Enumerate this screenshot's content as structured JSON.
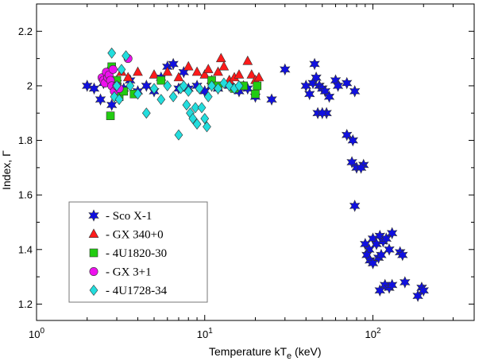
{
  "chart_data": {
    "type": "scatter",
    "title": "",
    "xlabel": "Temperature kT",
    "xlabel_sub": "e",
    "xlabel_unit": " (keV)",
    "ylabel": "Index, Γ",
    "xscale": "log",
    "xlim": [
      1,
      400
    ],
    "ylim": [
      1.14,
      2.3
    ],
    "x_ticks": [
      {
        "value": 1,
        "base": "10",
        "exp": "0"
      },
      {
        "value": 10,
        "base": "10",
        "exp": "1"
      },
      {
        "value": 100,
        "base": "10",
        "exp": "2"
      }
    ],
    "y_ticks": [
      1.2,
      1.4,
      1.6,
      1.8,
      2.0,
      2.2
    ],
    "y_tick_labels": [
      "1.2",
      "1.4",
      "1.6",
      "1.8",
      "2",
      "2.2"
    ],
    "legend_position": "bottom-left",
    "series": [
      {
        "name": "- Sco X-1",
        "marker": "star",
        "color": "#1010e0",
        "points": [
          [
            2.0,
            2.0
          ],
          [
            2.2,
            1.99
          ],
          [
            2.4,
            1.95
          ],
          [
            2.5,
            2.01
          ],
          [
            2.8,
            1.93
          ],
          [
            3.0,
            2.01
          ],
          [
            3.3,
            1.99
          ],
          [
            3.6,
            2.02
          ],
          [
            4.0,
            1.98
          ],
          [
            4.5,
            2.0
          ],
          [
            5.0,
            1.98
          ],
          [
            5.5,
            2.03
          ],
          [
            6.0,
            2.07
          ],
          [
            6.5,
            2.08
          ],
          [
            7.0,
            1.99
          ],
          [
            7.5,
            2.05
          ],
          [
            8.0,
            1.99
          ],
          [
            9.0,
            2.0
          ],
          [
            10.0,
            1.98
          ],
          [
            11.0,
            2.0
          ],
          [
            12.0,
            1.99
          ],
          [
            14.0,
            2.0
          ],
          [
            16.0,
            1.98
          ],
          [
            18.0,
            1.99
          ],
          [
            20.0,
            1.96
          ],
          [
            25.0,
            1.95
          ],
          [
            30.0,
            2.06
          ],
          [
            40.0,
            2.0
          ],
          [
            42.0,
            1.97
          ],
          [
            44.0,
            2.01
          ],
          [
            45.0,
            2.08
          ],
          [
            46.0,
            2.03
          ],
          [
            48.0,
            2.0
          ],
          [
            50.0,
            1.99
          ],
          [
            52.0,
            1.98
          ],
          [
            55.0,
            1.96
          ],
          [
            53.0,
            1.9
          ],
          [
            47.0,
            1.9
          ],
          [
            50.0,
            1.9
          ],
          [
            60.0,
            2.02
          ],
          [
            62.0,
            2.0
          ],
          [
            70.0,
            2.01
          ],
          [
            78.0,
            1.98
          ],
          [
            70.0,
            1.82
          ],
          [
            76.0,
            1.8
          ],
          [
            75.0,
            1.72
          ],
          [
            80.0,
            1.7
          ],
          [
            88.0,
            1.71
          ],
          [
            85.0,
            1.7
          ],
          [
            78.0,
            1.56
          ],
          [
            90.0,
            1.42
          ],
          [
            95.0,
            1.4
          ],
          [
            100.0,
            1.44
          ],
          [
            105.0,
            1.42
          ],
          [
            110.0,
            1.45
          ],
          [
            115.0,
            1.43
          ],
          [
            120.0,
            1.44
          ],
          [
            130.0,
            1.46
          ],
          [
            125.0,
            1.4
          ],
          [
            92.0,
            1.38
          ],
          [
            96.0,
            1.36
          ],
          [
            100.0,
            1.35
          ],
          [
            108.0,
            1.37
          ],
          [
            112.0,
            1.38
          ],
          [
            145.0,
            1.39
          ],
          [
            150.0,
            1.38
          ],
          [
            110.0,
            1.25
          ],
          [
            118.0,
            1.27
          ],
          [
            125.0,
            1.26
          ],
          [
            130.0,
            1.27
          ],
          [
            155.0,
            1.28
          ],
          [
            185.0,
            1.23
          ],
          [
            195.0,
            1.26
          ],
          [
            200.0,
            1.25
          ]
        ]
      },
      {
        "name": "- GX 340+0",
        "marker": "triangle",
        "color": "#ff1a1a",
        "points": [
          [
            2.7,
            2.06
          ],
          [
            3.0,
            2.02
          ],
          [
            3.2,
            2.05
          ],
          [
            3.5,
            2.03
          ],
          [
            4.0,
            2.05
          ],
          [
            5.0,
            2.04
          ],
          [
            6.0,
            2.05
          ],
          [
            7.0,
            2.03
          ],
          [
            8.0,
            2.07
          ],
          [
            9.0,
            2.05
          ],
          [
            10.0,
            2.04
          ],
          [
            10.5,
            2.06
          ],
          [
            11.0,
            2.02
          ],
          [
            12.0,
            2.05
          ],
          [
            12.5,
            2.1
          ],
          [
            13.0,
            2.07
          ],
          [
            14.0,
            2.02
          ],
          [
            15.0,
            2.03
          ],
          [
            16.0,
            2.04
          ],
          [
            17.0,
            2.0
          ],
          [
            18.0,
            2.09
          ],
          [
            19.0,
            2.04
          ],
          [
            20.0,
            2.02
          ],
          [
            21.0,
            2.03
          ]
        ]
      },
      {
        "name": "- 4U1820-30",
        "marker": "square",
        "color": "#22cc11",
        "points": [
          [
            2.75,
            1.89
          ],
          [
            2.8,
            2.07
          ],
          [
            3.0,
            2.02
          ],
          [
            3.1,
            1.96
          ],
          [
            3.3,
            1.98
          ],
          [
            3.8,
            1.97
          ],
          [
            5.5,
            2.02
          ],
          [
            11.0,
            2.02
          ],
          [
            12.0,
            2.0
          ],
          [
            15.0,
            1.99
          ],
          [
            17.0,
            2.0
          ],
          [
            20.0,
            1.97
          ],
          [
            20.5,
            2.0
          ]
        ]
      },
      {
        "name": "- GX 3+1",
        "marker": "circle",
        "color": "#ee11ee",
        "points": [
          [
            2.45,
            2.03
          ],
          [
            2.5,
            2.02
          ],
          [
            2.55,
            2.01
          ],
          [
            2.6,
            2.05
          ],
          [
            2.65,
            2.03
          ],
          [
            2.7,
            2.04
          ],
          [
            2.75,
            2.02
          ],
          [
            2.8,
            2.0
          ],
          [
            2.85,
            2.06
          ],
          [
            2.9,
            1.98
          ],
          [
            3.0,
            2.0
          ],
          [
            3.1,
            1.99
          ],
          [
            3.5,
            2.1
          ]
        ]
      },
      {
        "name": "- 4U1728-34",
        "marker": "diamond",
        "color": "#22dddd",
        "points": [
          [
            2.8,
            2.12
          ],
          [
            2.9,
            1.96
          ],
          [
            3.0,
            2.0
          ],
          [
            3.1,
            1.95
          ],
          [
            3.2,
            2.06
          ],
          [
            3.4,
            2.11
          ],
          [
            3.6,
            2.0
          ],
          [
            4.0,
            1.97
          ],
          [
            4.5,
            1.9
          ],
          [
            5.0,
            1.99
          ],
          [
            5.5,
            1.95
          ],
          [
            6.0,
            2.0
          ],
          [
            6.5,
            1.96
          ],
          [
            7.0,
            1.82
          ],
          [
            7.2,
            1.99
          ],
          [
            7.5,
            2.0
          ],
          [
            7.8,
            1.93
          ],
          [
            8.0,
            1.98
          ],
          [
            8.2,
            1.9
          ],
          [
            8.5,
            1.88
          ],
          [
            8.8,
            1.92
          ],
          [
            9.0,
            1.86
          ],
          [
            9.3,
            1.99
          ],
          [
            9.6,
            1.92
          ],
          [
            10.0,
            1.88
          ],
          [
            10.3,
            1.85
          ],
          [
            10.5,
            1.96
          ],
          [
            11.0,
            2.0
          ],
          [
            12.0,
            1.99
          ],
          [
            13.0,
            2.01
          ],
          [
            14.0,
            2.0
          ],
          [
            15.0,
            1.99
          ],
          [
            16.0,
            2.0
          ]
        ]
      }
    ]
  }
}
